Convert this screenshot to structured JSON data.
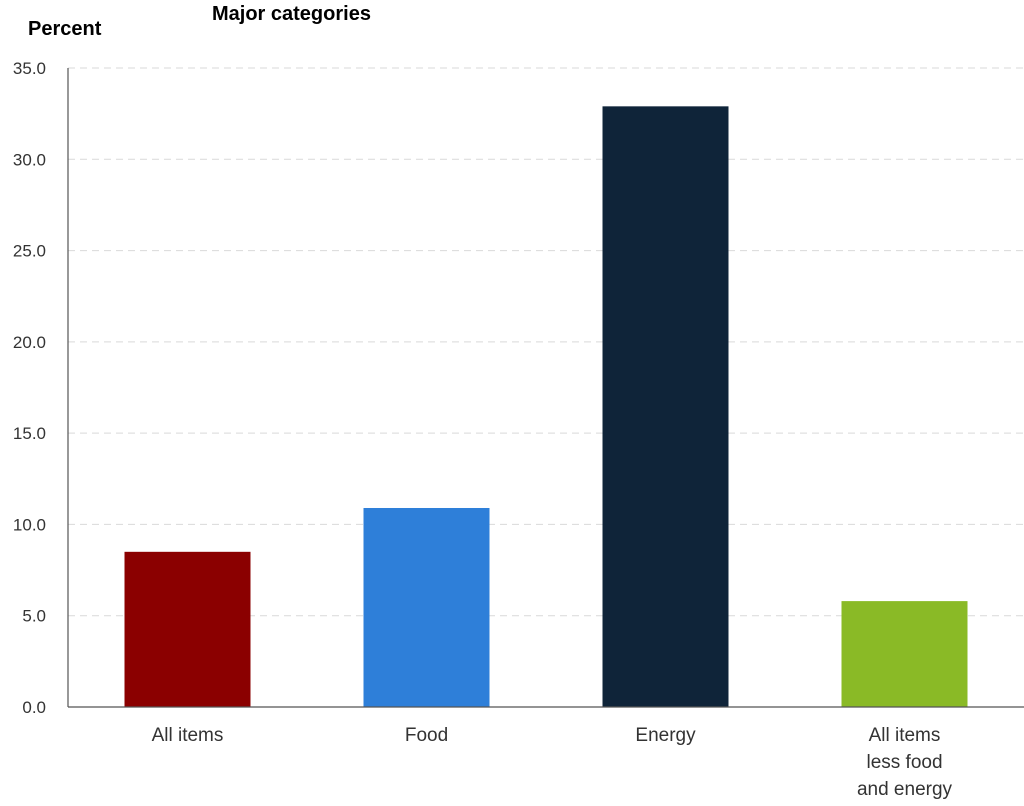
{
  "chart_data": {
    "type": "bar",
    "title": "Major categories",
    "ylabel": "Percent",
    "xlabel": "",
    "categories": [
      [
        "All items"
      ],
      [
        "Food"
      ],
      [
        "Energy"
      ],
      [
        "All items",
        "less food",
        "and energy"
      ]
    ],
    "values": [
      8.5,
      10.9,
      32.9,
      5.8
    ],
    "colors": [
      "#8b0000",
      "#2e7fd9",
      "#0f2439",
      "#8aba26"
    ],
    "ylim": [
      0,
      35
    ],
    "yticks": [
      "0.0",
      "5.0",
      "10.0",
      "15.0",
      "20.0",
      "25.0",
      "30.0",
      "35.0"
    ],
    "ytick_values": [
      0,
      5,
      10,
      15,
      20,
      25,
      30,
      35
    ],
    "grid": true,
    "legend": "none"
  }
}
